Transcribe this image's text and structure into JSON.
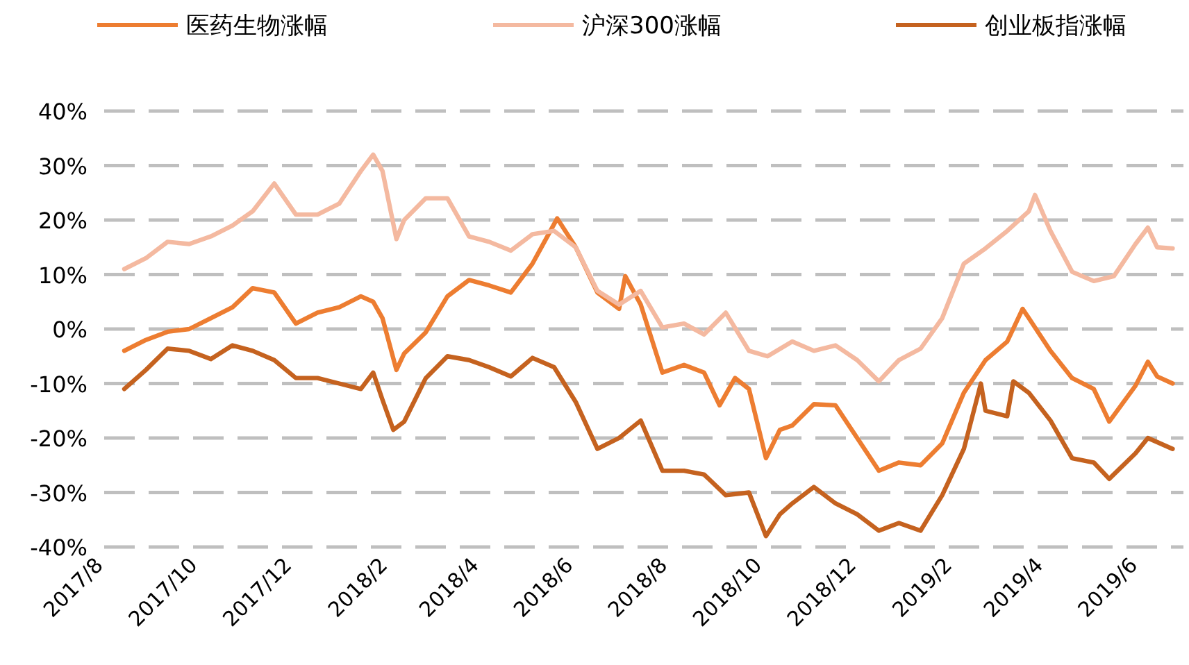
{
  "chart_data": {
    "type": "line",
    "legend": "top",
    "grid": "y",
    "marker": "none",
    "line_style": "solid",
    "xlim": [
      "2017-08-01",
      "2019-06-30"
    ],
    "xticks": [
      {
        "value": "2017-08-01",
        "label": "2017/8"
      },
      {
        "value": "2017-10-01",
        "label": "2017/10"
      },
      {
        "value": "2017-12-01",
        "label": "2017/12"
      },
      {
        "value": "2018-02-01",
        "label": "2018/2"
      },
      {
        "value": "2018-04-01",
        "label": "2018/4"
      },
      {
        "value": "2018-06-01",
        "label": "2018/6"
      },
      {
        "value": "2018-08-01",
        "label": "2018/8"
      },
      {
        "value": "2018-10-01",
        "label": "2018/10"
      },
      {
        "value": "2018-12-01",
        "label": "2018/12"
      },
      {
        "value": "2019-02-01",
        "label": "2019/2"
      },
      {
        "value": "2019-04-01",
        "label": "2019/4"
      },
      {
        "value": "2019-06-01",
        "label": "2019/6"
      }
    ],
    "ylim": [
      -40,
      40
    ],
    "yticks": [
      {
        "value": -40,
        "label": "-40%"
      },
      {
        "value": -30,
        "label": "-30%"
      },
      {
        "value": -20,
        "label": "-20%"
      },
      {
        "value": -10,
        "label": "-10%"
      },
      {
        "value": 0,
        "label": "0%"
      },
      {
        "value": 10,
        "label": "10%"
      },
      {
        "value": 20,
        "label": "20%"
      },
      {
        "value": 30,
        "label": "30%"
      },
      {
        "value": 40,
        "label": "40%"
      }
    ],
    "series": [
      {
        "name": "医药生物涨幅",
        "color": "#ed7d31",
        "x": [
          "2017-08-14",
          "2017-08-28",
          "2017-09-11",
          "2017-09-25",
          "2017-10-09",
          "2017-10-23",
          "2017-11-05",
          "2017-11-19",
          "2017-12-03",
          "2017-12-17",
          "2017-12-31",
          "2018-01-14",
          "2018-01-22",
          "2018-01-28",
          "2018-02-06",
          "2018-02-11",
          "2018-02-25",
          "2018-03-11",
          "2018-03-25",
          "2018-04-07",
          "2018-04-21",
          "2018-05-05",
          "2018-05-21",
          "2018-06-02",
          "2018-06-16",
          "2018-06-30",
          "2018-07-04",
          "2018-07-14",
          "2018-07-28",
          "2018-08-11",
          "2018-08-24",
          "2018-09-03",
          "2018-09-13",
          "2018-09-22",
          "2018-10-03",
          "2018-10-12",
          "2018-10-20",
          "2018-11-03",
          "2018-11-17",
          "2018-12-01",
          "2018-12-15",
          "2018-12-28",
          "2019-01-11",
          "2019-01-25",
          "2019-02-08",
          "2019-02-22",
          "2019-03-08",
          "2019-03-18",
          "2019-03-22",
          "2019-04-05",
          "2019-04-19",
          "2019-05-03",
          "2019-05-13",
          "2019-05-30",
          "2019-06-07",
          "2019-06-13",
          "2019-06-23"
        ],
        "values": [
          -4,
          -2,
          -0.5,
          0,
          2,
          4,
          7.5,
          6.7,
          1,
          3,
          4,
          6,
          5,
          2,
          -7.5,
          -4.5,
          -0.6,
          6,
          9,
          8,
          6.7,
          12,
          20.3,
          15,
          6.7,
          3.7,
          9.7,
          4.5,
          -8,
          -6.6,
          -8,
          -14,
          -9,
          -11,
          -23.7,
          -18.5,
          -17.7,
          -13.8,
          -14,
          -20,
          -26,
          -24.5,
          -25,
          -21,
          -11.7,
          -5.7,
          -2.3,
          3.7,
          2,
          -4,
          -9,
          -11,
          -17,
          -10.4,
          -6,
          -8.7,
          -10
        ]
      },
      {
        "name": "沪深300涨幅",
        "color": "#f4b9a0",
        "x": [
          "2017-08-14",
          "2017-08-28",
          "2017-09-11",
          "2017-09-25",
          "2017-10-09",
          "2017-10-23",
          "2017-11-05",
          "2017-11-19",
          "2017-12-03",
          "2017-12-17",
          "2017-12-31",
          "2018-01-14",
          "2018-01-22",
          "2018-01-28",
          "2018-02-06",
          "2018-02-11",
          "2018-02-25",
          "2018-03-11",
          "2018-03-25",
          "2018-04-07",
          "2018-04-21",
          "2018-05-05",
          "2018-05-19",
          "2018-06-02",
          "2018-06-16",
          "2018-06-30",
          "2018-07-14",
          "2018-07-28",
          "2018-08-11",
          "2018-08-24",
          "2018-09-07",
          "2018-09-22",
          "2018-10-04",
          "2018-10-20",
          "2018-11-03",
          "2018-11-17",
          "2018-12-01",
          "2018-12-15",
          "2018-12-28",
          "2019-01-11",
          "2019-01-25",
          "2019-02-08",
          "2019-02-22",
          "2019-03-08",
          "2019-03-22",
          "2019-03-26",
          "2019-04-05",
          "2019-04-19",
          "2019-05-03",
          "2019-05-16",
          "2019-05-30",
          "2019-06-07",
          "2019-06-13",
          "2019-06-23"
        ],
        "values": [
          11,
          13,
          16,
          15.6,
          17,
          19,
          21.6,
          26.7,
          21,
          21,
          23,
          29,
          32,
          29,
          16.5,
          20,
          24,
          24,
          17,
          16,
          14.4,
          17.4,
          18,
          15,
          7,
          4.5,
          7,
          0.3,
          1,
          -1,
          3,
          -4,
          -5,
          -2.3,
          -4,
          -3,
          -5.7,
          -9.6,
          -5.7,
          -3.6,
          2,
          12,
          14.8,
          18,
          21.6,
          24.6,
          18,
          10.5,
          8.8,
          9.7,
          15.6,
          18.6,
          15,
          14.8
        ]
      },
      {
        "name": "创业板指涨幅",
        "color": "#c5621f",
        "x": [
          "2017-08-14",
          "2017-08-28",
          "2017-09-11",
          "2017-09-25",
          "2017-10-09",
          "2017-10-23",
          "2017-11-05",
          "2017-11-19",
          "2017-12-03",
          "2017-12-17",
          "2017-12-31",
          "2018-01-14",
          "2018-01-22",
          "2018-01-28",
          "2018-02-04",
          "2018-02-11",
          "2018-02-25",
          "2018-03-11",
          "2018-03-25",
          "2018-04-07",
          "2018-04-21",
          "2018-05-05",
          "2018-05-19",
          "2018-06-02",
          "2018-06-16",
          "2018-06-30",
          "2018-07-14",
          "2018-07-28",
          "2018-08-11",
          "2018-08-24",
          "2018-09-07",
          "2018-09-22",
          "2018-10-03",
          "2018-10-12",
          "2018-10-20",
          "2018-11-03",
          "2018-11-17",
          "2018-12-01",
          "2018-12-15",
          "2018-12-28",
          "2019-01-11",
          "2019-01-25",
          "2019-02-08",
          "2019-02-19",
          "2019-02-22",
          "2019-03-08",
          "2019-03-12",
          "2019-03-22",
          "2019-04-05",
          "2019-04-19",
          "2019-05-03",
          "2019-05-13",
          "2019-05-30",
          "2019-06-07",
          "2019-06-23"
        ],
        "values": [
          -11,
          -7.5,
          -3.6,
          -4,
          -5.5,
          -3,
          -4,
          -5.7,
          -9,
          -9,
          -10,
          -11,
          -8,
          -13,
          -18.5,
          -17,
          -9,
          -5,
          -5.7,
          -7,
          -8.7,
          -5.3,
          -7,
          -13.4,
          -22,
          -20,
          -16.8,
          -26,
          -26,
          -26.7,
          -30.5,
          -30,
          -38,
          -34,
          -32,
          -29,
          -32,
          -34,
          -37,
          -35.6,
          -37,
          -30.5,
          -22,
          -10,
          -15,
          -16,
          -9.6,
          -11.7,
          -16.8,
          -23.7,
          -24.5,
          -27.5,
          -22.8,
          -20,
          -22
        ]
      }
    ]
  }
}
